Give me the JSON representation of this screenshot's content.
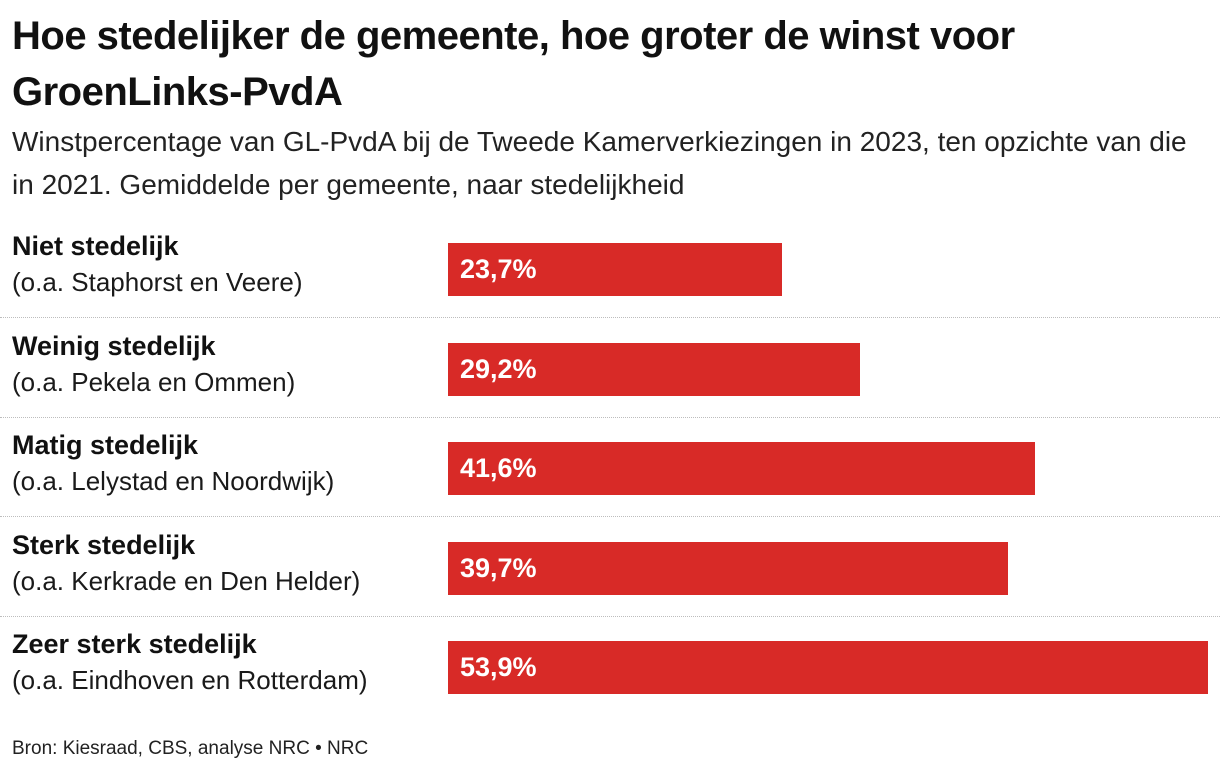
{
  "header": {
    "title": "Hoe stedelijker de gemeente, hoe groter de winst voor GroenLinks-PvdA",
    "subtitle": "Winstpercentage van GL-PvdA bij de Tweede Kamerverkiezingen in 2023, ten opzichte van die in 2021. Gemiddelde per gemeente, naar stedelijkheid"
  },
  "chart_data": {
    "type": "bar",
    "orientation": "horizontal",
    "title": "Hoe stedelijker de gemeente, hoe groter de winst voor GroenLinks-PvdA",
    "subtitle": "Winstpercentage van GL-PvdA bij de Tweede Kamerverkiezingen in 2023, ten opzichte van die in 2021. Gemiddelde per gemeente, naar stedelijkheid",
    "categories": [
      "Niet stedelijk",
      "Weinig stedelijk",
      "Matig stedelijk",
      "Sterk stedelijk",
      "Zeer sterk stedelijk"
    ],
    "category_notes": [
      "(o.a. Staphorst en Veere)",
      "(o.a. Pekela en Ommen)",
      "(o.a. Lelystad en Noordwijk)",
      "(o.a. Kerkrade en Den Helder)",
      "(o.a. Eindhoven en Rotterdam)"
    ],
    "values": [
      23.7,
      29.2,
      41.6,
      39.7,
      53.9
    ],
    "value_labels": [
      "23,7%",
      "29,2%",
      "41,6%",
      "39,7%",
      "53,9%"
    ],
    "xlim": [
      0,
      53.9
    ],
    "bar_color": "#d82a27",
    "label_color": "#ffffff",
    "grid": false
  },
  "footer": {
    "source": "Bron: Kiesraad, CBS, analyse NRC • NRC"
  }
}
